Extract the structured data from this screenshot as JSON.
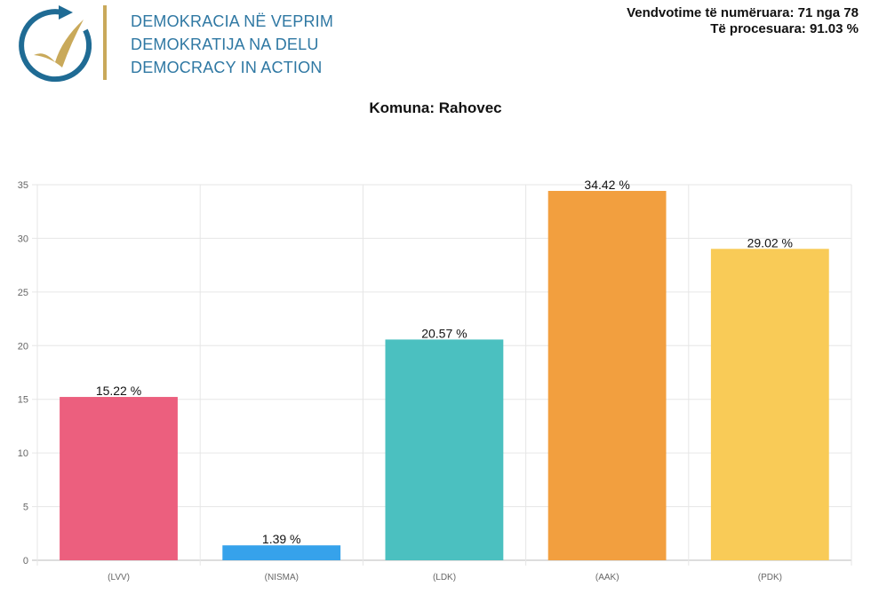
{
  "logo": {
    "lines": [
      "DEMOKRACIA NË VEPRIM",
      "DEMOKRATIJA NA DELU",
      "DEMOCRACY IN ACTION"
    ],
    "colors": {
      "text": "#2f78a3",
      "accent": "#c9a95a"
    }
  },
  "stats": {
    "counted": "Vendvotime të numëruara: 71 nga 78",
    "processed": "Të procesuara: 91.03 %"
  },
  "chart_data": {
    "type": "bar",
    "title": "Komuna: Rahovec",
    "categories": [
      "(LVV)",
      "(NISMA)",
      "(LDK)",
      "(AAK)",
      "(PDK)"
    ],
    "values": [
      15.22,
      1.39,
      20.57,
      34.42,
      29.02
    ],
    "data_labels": [
      "15.22 %",
      "1.39 %",
      "20.57 %",
      "34.42 %",
      "29.02 %"
    ],
    "colors": [
      "#ec5f7e",
      "#36a2eb",
      "#4bc0c0",
      "#f29f3f",
      "#f9cb57"
    ],
    "ylim": [
      0,
      35
    ],
    "yticks": [
      "0",
      "5",
      "10",
      "15",
      "20",
      "25",
      "30",
      "35"
    ],
    "grid": true,
    "xlabel": "",
    "ylabel": ""
  }
}
